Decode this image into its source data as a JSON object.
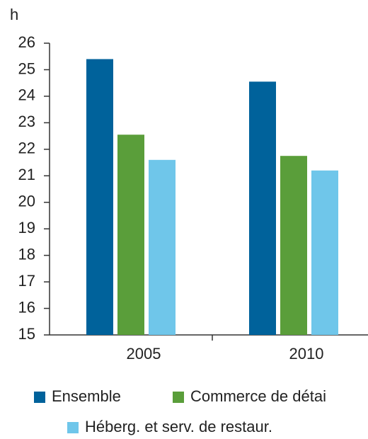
{
  "chart_data": {
    "type": "bar",
    "y_label": "h",
    "categories": [
      "2005",
      "2010"
    ],
    "series": [
      {
        "name": "Ensemble",
        "color": "#00629b",
        "values": [
          25.4,
          24.55
        ]
      },
      {
        "name": "Commerce de détai",
        "color": "#5a9e3a",
        "values": [
          22.55,
          21.75
        ]
      },
      {
        "name": "Héberg. et serv. de restaur.",
        "color": "#6fc6ea",
        "values": [
          21.6,
          21.2
        ]
      }
    ],
    "ylim": [
      15,
      26
    ],
    "yticks": [
      15,
      16,
      17,
      18,
      19,
      20,
      21,
      22,
      23,
      24,
      25,
      26
    ],
    "grid": false
  }
}
